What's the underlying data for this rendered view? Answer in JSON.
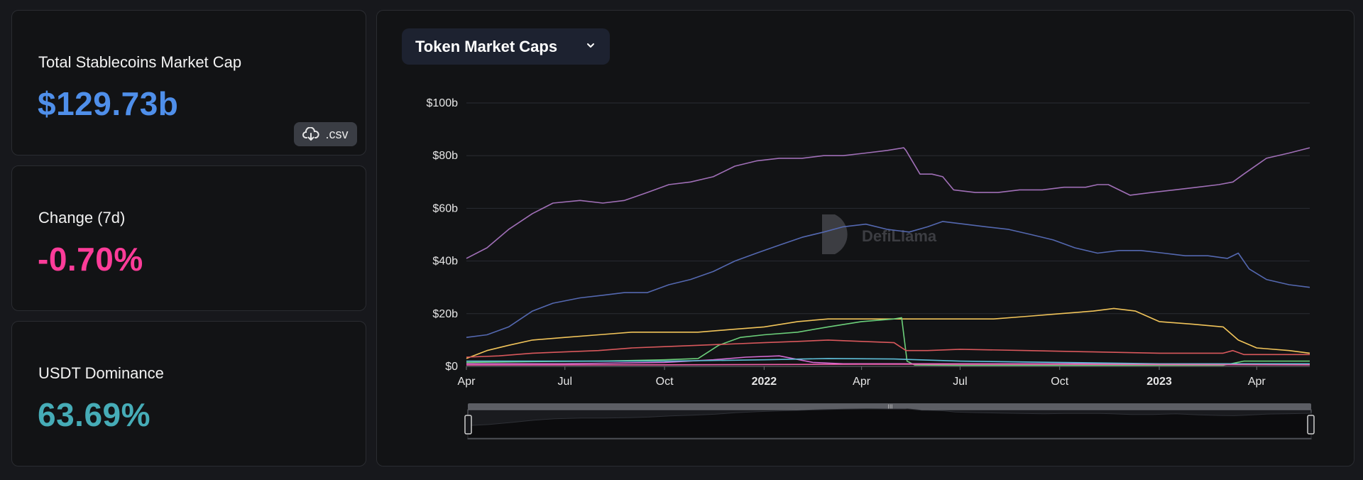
{
  "summary": {
    "market_cap": {
      "label": "Total Stablecoins Market Cap",
      "value": "$129.73b",
      "color": "#4f8fea"
    },
    "change_7d": {
      "label": "Change (7d)",
      "value": "-0.70%",
      "color": "#fd3c99"
    },
    "dominance": {
      "label": "USDT Dominance",
      "value": "63.69%",
      "color": "#46acb7"
    },
    "csv_label": ".csv"
  },
  "chart_selector": {
    "label": "Token Market Caps",
    "icon": "chevron-down-icon"
  },
  "watermark": "DefiLlama",
  "colors": {
    "background": "#17181c",
    "card": "#121315",
    "grid": "#2a2c33"
  },
  "chart_data": {
    "type": "line",
    "title": "",
    "xlabel": "",
    "ylabel": "",
    "ylim": [
      0,
      100
    ],
    "xlim": [
      "2021-04-01",
      "2023-05-20"
    ],
    "yticks": [
      "$0",
      "$20b",
      "$40b",
      "$60b",
      "$80b",
      "$100b"
    ],
    "ytick_values": [
      0,
      20,
      40,
      60,
      80,
      100
    ],
    "xticks": [
      {
        "date": "2021-04-01",
        "label": "Apr",
        "bold": false
      },
      {
        "date": "2021-07-01",
        "label": "Jul",
        "bold": false
      },
      {
        "date": "2021-10-01",
        "label": "Oct",
        "bold": false
      },
      {
        "date": "2022-01-01",
        "label": "2022",
        "bold": true
      },
      {
        "date": "2022-04-01",
        "label": "Apr",
        "bold": false
      },
      {
        "date": "2022-07-01",
        "label": "Jul",
        "bold": false
      },
      {
        "date": "2022-10-01",
        "label": "Oct",
        "bold": false
      },
      {
        "date": "2023-01-01",
        "label": "2023",
        "bold": true
      },
      {
        "date": "2023-04-01",
        "label": "Apr",
        "bold": false
      }
    ],
    "grid": true,
    "legend": "none",
    "series": [
      {
        "color": "#a06fb7",
        "x": [
          "2021-04-01",
          "2021-04-20",
          "2021-05-10",
          "2021-06-01",
          "2021-06-20",
          "2021-07-15",
          "2021-08-05",
          "2021-08-25",
          "2021-09-15",
          "2021-10-05",
          "2021-10-25",
          "2021-11-15",
          "2021-12-05",
          "2021-12-25",
          "2022-01-15",
          "2022-02-05",
          "2022-02-25",
          "2022-03-15",
          "2022-04-05",
          "2022-04-25",
          "2022-05-10",
          "2022-05-12",
          "2022-05-25",
          "2022-06-05",
          "2022-06-15",
          "2022-06-25",
          "2022-07-15",
          "2022-08-05",
          "2022-08-25",
          "2022-09-15",
          "2022-10-05",
          "2022-10-25",
          "2022-11-05",
          "2022-11-15",
          "2022-12-05",
          "2022-12-25",
          "2023-01-15",
          "2023-02-05",
          "2023-02-25",
          "2023-03-10",
          "2023-03-20",
          "2023-04-10",
          "2023-05-01",
          "2023-05-20"
        ],
        "y": [
          41,
          45,
          52,
          58,
          62,
          63,
          62,
          63,
          66,
          69,
          70,
          72,
          76,
          78,
          79,
          79,
          80,
          80,
          81,
          82,
          83,
          82,
          73,
          73,
          72,
          67,
          66,
          66,
          67,
          67,
          68,
          68,
          69,
          69,
          65,
          66,
          67,
          68,
          69,
          70,
          73,
          79,
          81,
          83
        ]
      },
      {
        "color": "#5468b0",
        "x": [
          "2021-04-01",
          "2021-04-20",
          "2021-05-10",
          "2021-06-01",
          "2021-06-20",
          "2021-07-15",
          "2021-08-05",
          "2021-08-25",
          "2021-09-15",
          "2021-10-05",
          "2021-10-25",
          "2021-11-15",
          "2021-12-05",
          "2021-12-25",
          "2022-01-15",
          "2022-02-05",
          "2022-02-25",
          "2022-03-15",
          "2022-04-05",
          "2022-04-25",
          "2022-05-15",
          "2022-06-01",
          "2022-06-15",
          "2022-07-05",
          "2022-07-25",
          "2022-08-15",
          "2022-09-05",
          "2022-09-25",
          "2022-10-15",
          "2022-11-05",
          "2022-11-25",
          "2022-12-15",
          "2023-01-05",
          "2023-01-25",
          "2023-02-15",
          "2023-03-05",
          "2023-03-15",
          "2023-03-25",
          "2023-04-10",
          "2023-05-01",
          "2023-05-20"
        ],
        "y": [
          11,
          12,
          15,
          21,
          24,
          26,
          27,
          28,
          28,
          31,
          33,
          36,
          40,
          43,
          46,
          49,
          51,
          53,
          54,
          52,
          51,
          53,
          55,
          54,
          53,
          52,
          50,
          48,
          45,
          43,
          44,
          44,
          43,
          42,
          42,
          41,
          43,
          37,
          33,
          31,
          30
        ]
      },
      {
        "color": "#f1c45a",
        "x": [
          "2021-04-01",
          "2021-04-20",
          "2021-05-10",
          "2021-06-01",
          "2021-07-01",
          "2021-08-01",
          "2021-09-01",
          "2021-10-01",
          "2021-11-01",
          "2021-12-01",
          "2022-01-01",
          "2022-02-01",
          "2022-03-01",
          "2022-04-01",
          "2022-05-01",
          "2022-06-01",
          "2022-07-01",
          "2022-08-01",
          "2022-09-01",
          "2022-10-01",
          "2022-11-01",
          "2022-11-20",
          "2022-12-10",
          "2023-01-01",
          "2023-02-01",
          "2023-03-01",
          "2023-03-15",
          "2023-04-01",
          "2023-05-01",
          "2023-05-20"
        ],
        "y": [
          3,
          6,
          8,
          10,
          11,
          12,
          13,
          13,
          13,
          14,
          15,
          17,
          18,
          18,
          18,
          18,
          18,
          18,
          19,
          20,
          21,
          22,
          21,
          17,
          16,
          15,
          10,
          7,
          6,
          5
        ]
      },
      {
        "color": "#6ccf7a",
        "x": [
          "2021-04-01",
          "2021-06-01",
          "2021-08-01",
          "2021-10-01",
          "2021-11-01",
          "2021-11-20",
          "2021-12-10",
          "2022-01-01",
          "2022-02-01",
          "2022-03-01",
          "2022-04-01",
          "2022-05-01",
          "2022-05-08",
          "2022-05-13",
          "2022-05-20",
          "2022-07-01",
          "2022-10-01",
          "2023-01-01",
          "2023-03-01",
          "2023-03-20",
          "2023-05-20"
        ],
        "y": [
          1.5,
          1.8,
          2,
          2.5,
          3,
          8,
          11,
          12,
          13,
          15,
          17,
          18,
          18.5,
          2,
          0.5,
          0.4,
          0.4,
          0.4,
          0.4,
          2,
          2
        ]
      },
      {
        "color": "#d9585c",
        "x": [
          "2021-04-01",
          "2021-05-01",
          "2021-06-01",
          "2021-07-01",
          "2021-08-01",
          "2021-09-01",
          "2021-10-01",
          "2021-11-01",
          "2021-12-01",
          "2022-01-01",
          "2022-02-01",
          "2022-03-01",
          "2022-04-01",
          "2022-05-01",
          "2022-05-12",
          "2022-06-01",
          "2022-07-01",
          "2022-09-01",
          "2022-11-01",
          "2023-01-01",
          "2023-03-01",
          "2023-03-10",
          "2023-03-20",
          "2023-05-20"
        ],
        "y": [
          3.5,
          4,
          5,
          5.5,
          6,
          7,
          7.5,
          8,
          8.5,
          9,
          9.5,
          10,
          9.5,
          9,
          6,
          6,
          6.5,
          6,
          5.5,
          5,
          5,
          6,
          4.5,
          4.5
        ]
      },
      {
        "color": "#d36ad3",
        "x": [
          "2021-04-01",
          "2021-07-01",
          "2021-10-01",
          "2021-11-15",
          "2021-12-15",
          "2022-01-15",
          "2022-02-15",
          "2022-03-15",
          "2022-06-01",
          "2022-10-01",
          "2023-01-01",
          "2023-05-20"
        ],
        "y": [
          1,
          1,
          1.5,
          2.5,
          3.5,
          4,
          1.5,
          1,
          1,
          1,
          1,
          1
        ]
      },
      {
        "color": "#5fbfd9",
        "x": [
          "2021-04-01",
          "2021-10-01",
          "2022-01-01",
          "2022-03-01",
          "2022-05-01",
          "2022-07-01",
          "2022-10-01",
          "2023-01-01",
          "2023-05-20"
        ],
        "y": [
          2,
          2,
          2.5,
          3,
          2.8,
          2,
          1.5,
          1,
          1
        ]
      },
      {
        "color": "#f05fa8",
        "x": [
          "2021-04-01",
          "2021-10-01",
          "2022-04-01",
          "2022-10-01",
          "2023-05-20"
        ],
        "y": [
          0.5,
          0.6,
          0.8,
          0.8,
          0.6
        ]
      }
    ]
  }
}
